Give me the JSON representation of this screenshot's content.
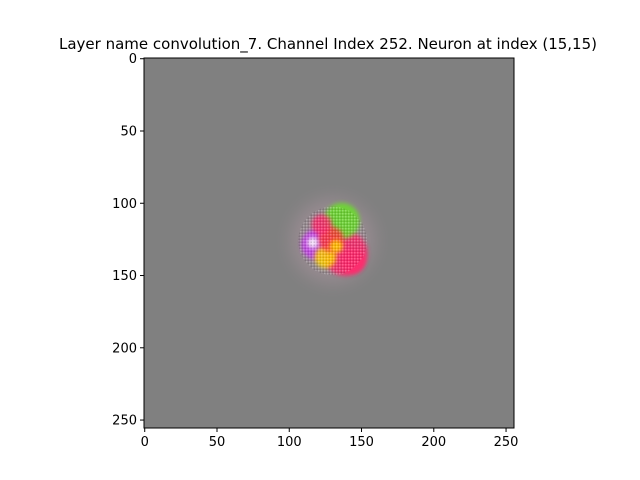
{
  "title": "Layer name convolution_7. Channel Index 252. Neuron at index (15,15)",
  "image": {
    "width": 256,
    "height": 256,
    "background_color": "#808080",
    "blob_center": [
      130,
      126
    ],
    "blob_radius": 25,
    "blob_colors": [
      "#ff2a6d",
      "#6adf2a",
      "#ffd400",
      "#c83cf0",
      "#ff3b3b",
      "#ffffff"
    ]
  },
  "axes": {
    "x_ticks": [
      "0",
      "50",
      "100",
      "150",
      "200",
      "250"
    ],
    "y_ticks": [
      "0",
      "50",
      "100",
      "150",
      "200",
      "250"
    ],
    "x_range": [
      -0.5,
      255.5
    ],
    "y_range": [
      -0.5,
      255.5
    ],
    "y_inverted": true
  }
}
